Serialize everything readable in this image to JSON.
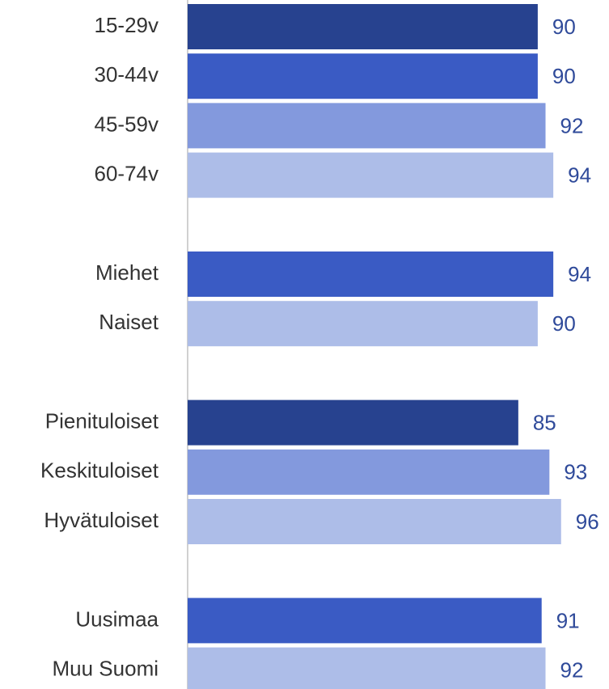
{
  "chart_data": {
    "type": "hbar",
    "categories": [
      "15-29v",
      "30-44v",
      "45-59v",
      "60-74v",
      null,
      "Miehet",
      "Naiset",
      null,
      "Pienituloiset",
      "Keskituloiset",
      "Hyvätuloiset",
      null,
      "Uusimaa",
      "Muu Suomi"
    ],
    "values": [
      90,
      90,
      92,
      94,
      null,
      94,
      90,
      null,
      85,
      93,
      96,
      null,
      91,
      92
    ],
    "colors": [
      "#27428f",
      "#3a5bc4",
      "#8399dd",
      "#adbde8",
      null,
      "#3a5bc4",
      "#adbde8",
      null,
      "#27428f",
      "#8399dd",
      "#adbde8",
      null,
      "#3a5bc4",
      "#adbde8"
    ],
    "xlim": [
      0,
      100
    ]
  }
}
